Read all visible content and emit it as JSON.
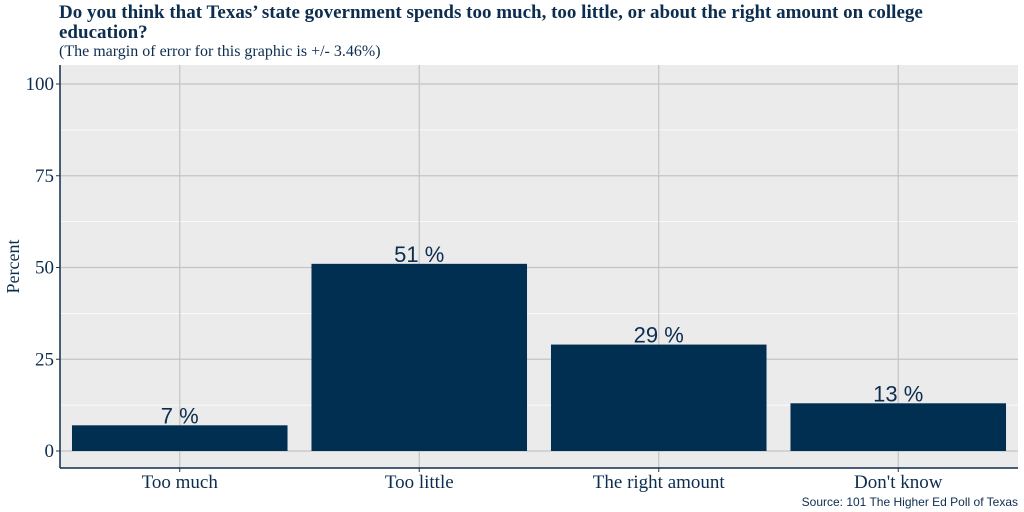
{
  "chart_data": {
    "type": "bar",
    "title": "Do you think that Texas’ state government spends too much, too little, or about the right amount on college education?",
    "subtitle": "(The margin of error for this graphic is +/- 3.46%)",
    "ylabel": "Percent",
    "xlabel": "",
    "caption": "Source: 101 The Higher Ed Poll of Texas",
    "categories": [
      "Too much",
      "Too little",
      "The right amount",
      "Don't know"
    ],
    "values": [
      7,
      51,
      29,
      13
    ],
    "data_labels": [
      "7 %",
      "51 %",
      "29 %",
      "13 %"
    ],
    "ylim": [
      0,
      104
    ],
    "yticks": [
      0,
      25,
      50,
      75,
      100
    ],
    "ytick_labels": [
      "0",
      "25",
      "50",
      "75",
      "100"
    ],
    "grid": true,
    "bar_color": "#002f52",
    "panel_color": "#ebebeb"
  }
}
